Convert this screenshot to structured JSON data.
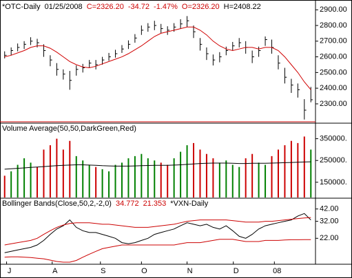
{
  "chart_data": [
    {
      "type": "ohlc",
      "title": "*OTC-Daily",
      "annotations": [
        {
          "text": "01/25/2008",
          "color": "#000000"
        },
        {
          "text": "C=2326.20",
          "color": "#cc0000"
        },
        {
          "text": "-34.72",
          "color": "#cc0000"
        },
        {
          "text": "-1.47%",
          "color": "#cc0000"
        },
        {
          "text": "O=2326.20",
          "color": "#cc0000"
        },
        {
          "text": "H=2408.22",
          "color": "#000000"
        }
      ],
      "bar_color": "#000000",
      "close": [
        2610,
        2640,
        2660,
        2680,
        2700,
        2690,
        2640,
        2580,
        2520,
        2490,
        2450,
        2520,
        2530,
        2560,
        2550,
        2580,
        2600,
        2620,
        2650,
        2680,
        2720,
        2770,
        2790,
        2800,
        2780,
        2770,
        2790,
        2810,
        2830,
        2760,
        2680,
        2620,
        2580,
        2600,
        2640,
        2670,
        2690,
        2660,
        2600,
        2640,
        2710,
        2660,
        2560,
        2470,
        2420,
        2390,
        2260,
        2326.2
      ],
      "high": [
        2635,
        2660,
        2685,
        2700,
        2725,
        2715,
        2680,
        2610,
        2560,
        2520,
        2510,
        2545,
        2555,
        2580,
        2580,
        2600,
        2625,
        2645,
        2675,
        2705,
        2745,
        2800,
        2815,
        2830,
        2810,
        2795,
        2815,
        2840,
        2860,
        2800,
        2720,
        2660,
        2615,
        2630,
        2665,
        2695,
        2720,
        2700,
        2640,
        2665,
        2730,
        2710,
        2610,
        2530,
        2460,
        2430,
        2330,
        2408.22
      ],
      "low": [
        2590,
        2610,
        2635,
        2650,
        2675,
        2660,
        2600,
        2540,
        2480,
        2455,
        2390,
        2480,
        2500,
        2530,
        2520,
        2550,
        2575,
        2595,
        2625,
        2650,
        2690,
        2740,
        2760,
        2770,
        2750,
        2740,
        2760,
        2780,
        2790,
        2720,
        2640,
        2580,
        2545,
        2565,
        2610,
        2640,
        2660,
        2620,
        2560,
        2600,
        2670,
        2620,
        2520,
        2430,
        2370,
        2340,
        2200,
        2310
      ],
      "series": [
        {
          "color": "#d00000",
          "values": [
            2600,
            2610,
            2625,
            2640,
            2660,
            2670,
            2670,
            2655,
            2630,
            2600,
            2570,
            2550,
            2535,
            2530,
            2540,
            2555,
            2570,
            2585,
            2600,
            2620,
            2645,
            2670,
            2700,
            2730,
            2750,
            2760,
            2770,
            2780,
            2790,
            2790,
            2770,
            2740,
            2700,
            2670,
            2650,
            2640,
            2650,
            2660,
            2660,
            2650,
            2660,
            2660,
            2640,
            2600,
            2550,
            2500,
            2440,
            2390
          ]
        }
      ],
      "ylim": [
        2190,
        2945
      ],
      "yticks": [
        {
          "value": 2900,
          "label": "2900.00"
        },
        {
          "value": 2800,
          "label": "2800.00"
        },
        {
          "value": 2700,
          "label": "2700.00"
        },
        {
          "value": 2600,
          "label": "2600.00"
        },
        {
          "value": 2500,
          "label": "2500.00"
        },
        {
          "value": 2400,
          "label": "2400.00"
        },
        {
          "value": 2300,
          "label": "2300.00"
        }
      ]
    },
    {
      "type": "bar",
      "title": "Volume Average(50,50,DarkGreen,Red)",
      "up_color": "#008000",
      "down_color": "#cc0000",
      "values": [
        180000,
        200000,
        230000,
        260000,
        240000,
        220000,
        300000,
        320000,
        350000,
        300000,
        340000,
        270000,
        250000,
        230000,
        220000,
        210000,
        200000,
        230000,
        240000,
        260000,
        270000,
        280000,
        260000,
        250000,
        240000,
        230000,
        260000,
        290000,
        320000,
        330000,
        300000,
        280000,
        260000,
        240000,
        250000,
        230000,
        220000,
        260000,
        280000,
        240000,
        230000,
        270000,
        300000,
        320000,
        340000,
        330000,
        360000,
        300000
      ],
      "series": [
        {
          "color": "#000000",
          "values": [
            210000,
            212000,
            214000,
            216000,
            218000,
            220000,
            222000,
            224000,
            226000,
            228000,
            229000,
            230000,
            230000,
            229000,
            228000,
            226000,
            225000,
            224000,
            224000,
            224000,
            225000,
            226000,
            227000,
            228000,
            228000,
            228000,
            229000,
            230000,
            232000,
            234000,
            236000,
            237000,
            238000,
            238000,
            238000,
            237000,
            236000,
            236000,
            237000,
            237000,
            237000,
            238000,
            239000,
            240000,
            241000,
            242000,
            243000,
            244000
          ]
        }
      ],
      "ylim": [
        80000,
        415000
      ],
      "yticks": [
        {
          "value": 350000,
          "label": "350000."
        },
        {
          "value": 250000,
          "label": "250000."
        },
        {
          "value": 150000,
          "label": "150000."
        }
      ]
    },
    {
      "type": "line",
      "title": "Bollinger Bands(Close,50,2,-2,0)",
      "annotations": [
        {
          "text": "34.772",
          "color": "#cc0000"
        },
        {
          "text": "21.353",
          "color": "#cc0000"
        },
        {
          "text": "*VXN-Daily",
          "color": "#000000"
        }
      ],
      "log": true,
      "series": [
        {
          "color": "#000000",
          "values": [
            16,
            16.5,
            17,
            17.5,
            18,
            19,
            21,
            24,
            27,
            29,
            33,
            28,
            26,
            25,
            25,
            24,
            23,
            22,
            20,
            19.5,
            20,
            21,
            22,
            24,
            25,
            26,
            27,
            29,
            31,
            30,
            29,
            30,
            28,
            27,
            29,
            26,
            23,
            22,
            24,
            27,
            29,
            30,
            31,
            32,
            33,
            36,
            38,
            33
          ]
        },
        {
          "color": "#cc0000",
          "values": [
            19,
            19.5,
            20,
            20.5,
            21,
            22,
            24,
            26,
            28,
            29.5,
            30.5,
            31,
            31,
            31,
            30.5,
            30,
            30,
            29.5,
            29,
            28.5,
            28,
            28,
            28,
            28.5,
            29,
            29.5,
            30,
            31,
            32,
            32.5,
            33,
            33,
            33,
            33,
            33,
            32.5,
            32,
            31.5,
            31.5,
            31.5,
            32,
            32,
            32.5,
            33,
            33.5,
            34,
            34.5,
            34.772
          ]
        },
        {
          "color": "#cc0000",
          "values": [
            14.5,
            14.6,
            14.6,
            14.5,
            14.4,
            14.2,
            14,
            13.6,
            13.2,
            13,
            13,
            13.5,
            14.5,
            15.5,
            16.5,
            17.5,
            18,
            18.5,
            19,
            19,
            19,
            19,
            19,
            19,
            19,
            19,
            19,
            19.5,
            20,
            20,
            20,
            20.5,
            21,
            21.5,
            21.5,
            21.5,
            21,
            20.5,
            20.5,
            20.5,
            21,
            21,
            21,
            21.2,
            21.3,
            21.3,
            21.35,
            21.353
          ]
        }
      ],
      "ylim": [
        12.8,
        51.7
      ],
      "yticks": [
        {
          "value": 42,
          "label": "42.00"
        },
        {
          "value": 32,
          "label": "32.00"
        },
        {
          "value": 22,
          "label": "22.00"
        }
      ],
      "xlim": [
        -0.5,
        47.5
      ],
      "xticks": [
        {
          "value": 0.3,
          "label": "J"
        },
        {
          "value": 7.3,
          "label": "A"
        },
        {
          "value": 14.7,
          "label": "S"
        },
        {
          "value": 21,
          "label": "O"
        },
        {
          "value": 28,
          "label": "N"
        },
        {
          "value": 35.1,
          "label": "D"
        },
        {
          "value": 41.4,
          "label": "08"
        }
      ]
    }
  ]
}
